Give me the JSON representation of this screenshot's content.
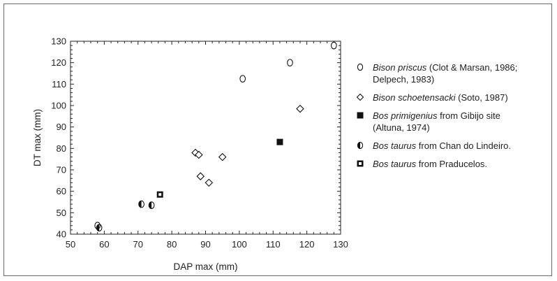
{
  "chart_data": {
    "type": "scatter",
    "xlabel": "DAP max (mm)",
    "ylabel": "DT max (mm)",
    "xlim": [
      50,
      130
    ],
    "ylim": [
      40,
      130
    ],
    "xticks": [
      50,
      60,
      70,
      80,
      90,
      100,
      110,
      120,
      130
    ],
    "yticks": [
      40,
      50,
      60,
      70,
      80,
      90,
      100,
      110,
      120,
      130
    ],
    "grid": false,
    "legend_position": "right",
    "series": [
      {
        "marker": "open-circle",
        "species": "Bison priscus",
        "text_line1": " (Clot & Marsan, 1986;",
        "text_line2": "Delpech, 1983)",
        "points": [
          [
            58,
            44
          ],
          [
            101,
            112.5
          ],
          [
            115,
            120
          ],
          [
            128,
            128
          ]
        ]
      },
      {
        "marker": "open-diamond",
        "species": "Bison schoetensacki",
        "text_line1": " (Soto, 1987)",
        "text_line2": "",
        "points": [
          [
            87,
            78
          ],
          [
            88,
            77
          ],
          [
            88.5,
            67
          ],
          [
            91,
            64
          ],
          [
            95,
            76
          ],
          [
            118,
            98.5
          ]
        ]
      },
      {
        "marker": "filled-square",
        "species": "Bos primigenius",
        "text_line1": " from Gibijo site",
        "text_line2": "(Altuna, 1974)",
        "points": [
          [
            112,
            83
          ]
        ]
      },
      {
        "marker": "half-filled-circle",
        "species": "Bos taurus",
        "text_line1": " from Chan do Lindeiro.",
        "text_line2": "",
        "points": [
          [
            58.5,
            43
          ],
          [
            71,
            54
          ],
          [
            74,
            53.5
          ]
        ]
      },
      {
        "marker": "dotted-square",
        "species": "Bos taurus",
        "text_line1": " from Praducelos.",
        "text_line2": "",
        "points": [
          [
            76.5,
            58.5
          ]
        ]
      }
    ]
  }
}
